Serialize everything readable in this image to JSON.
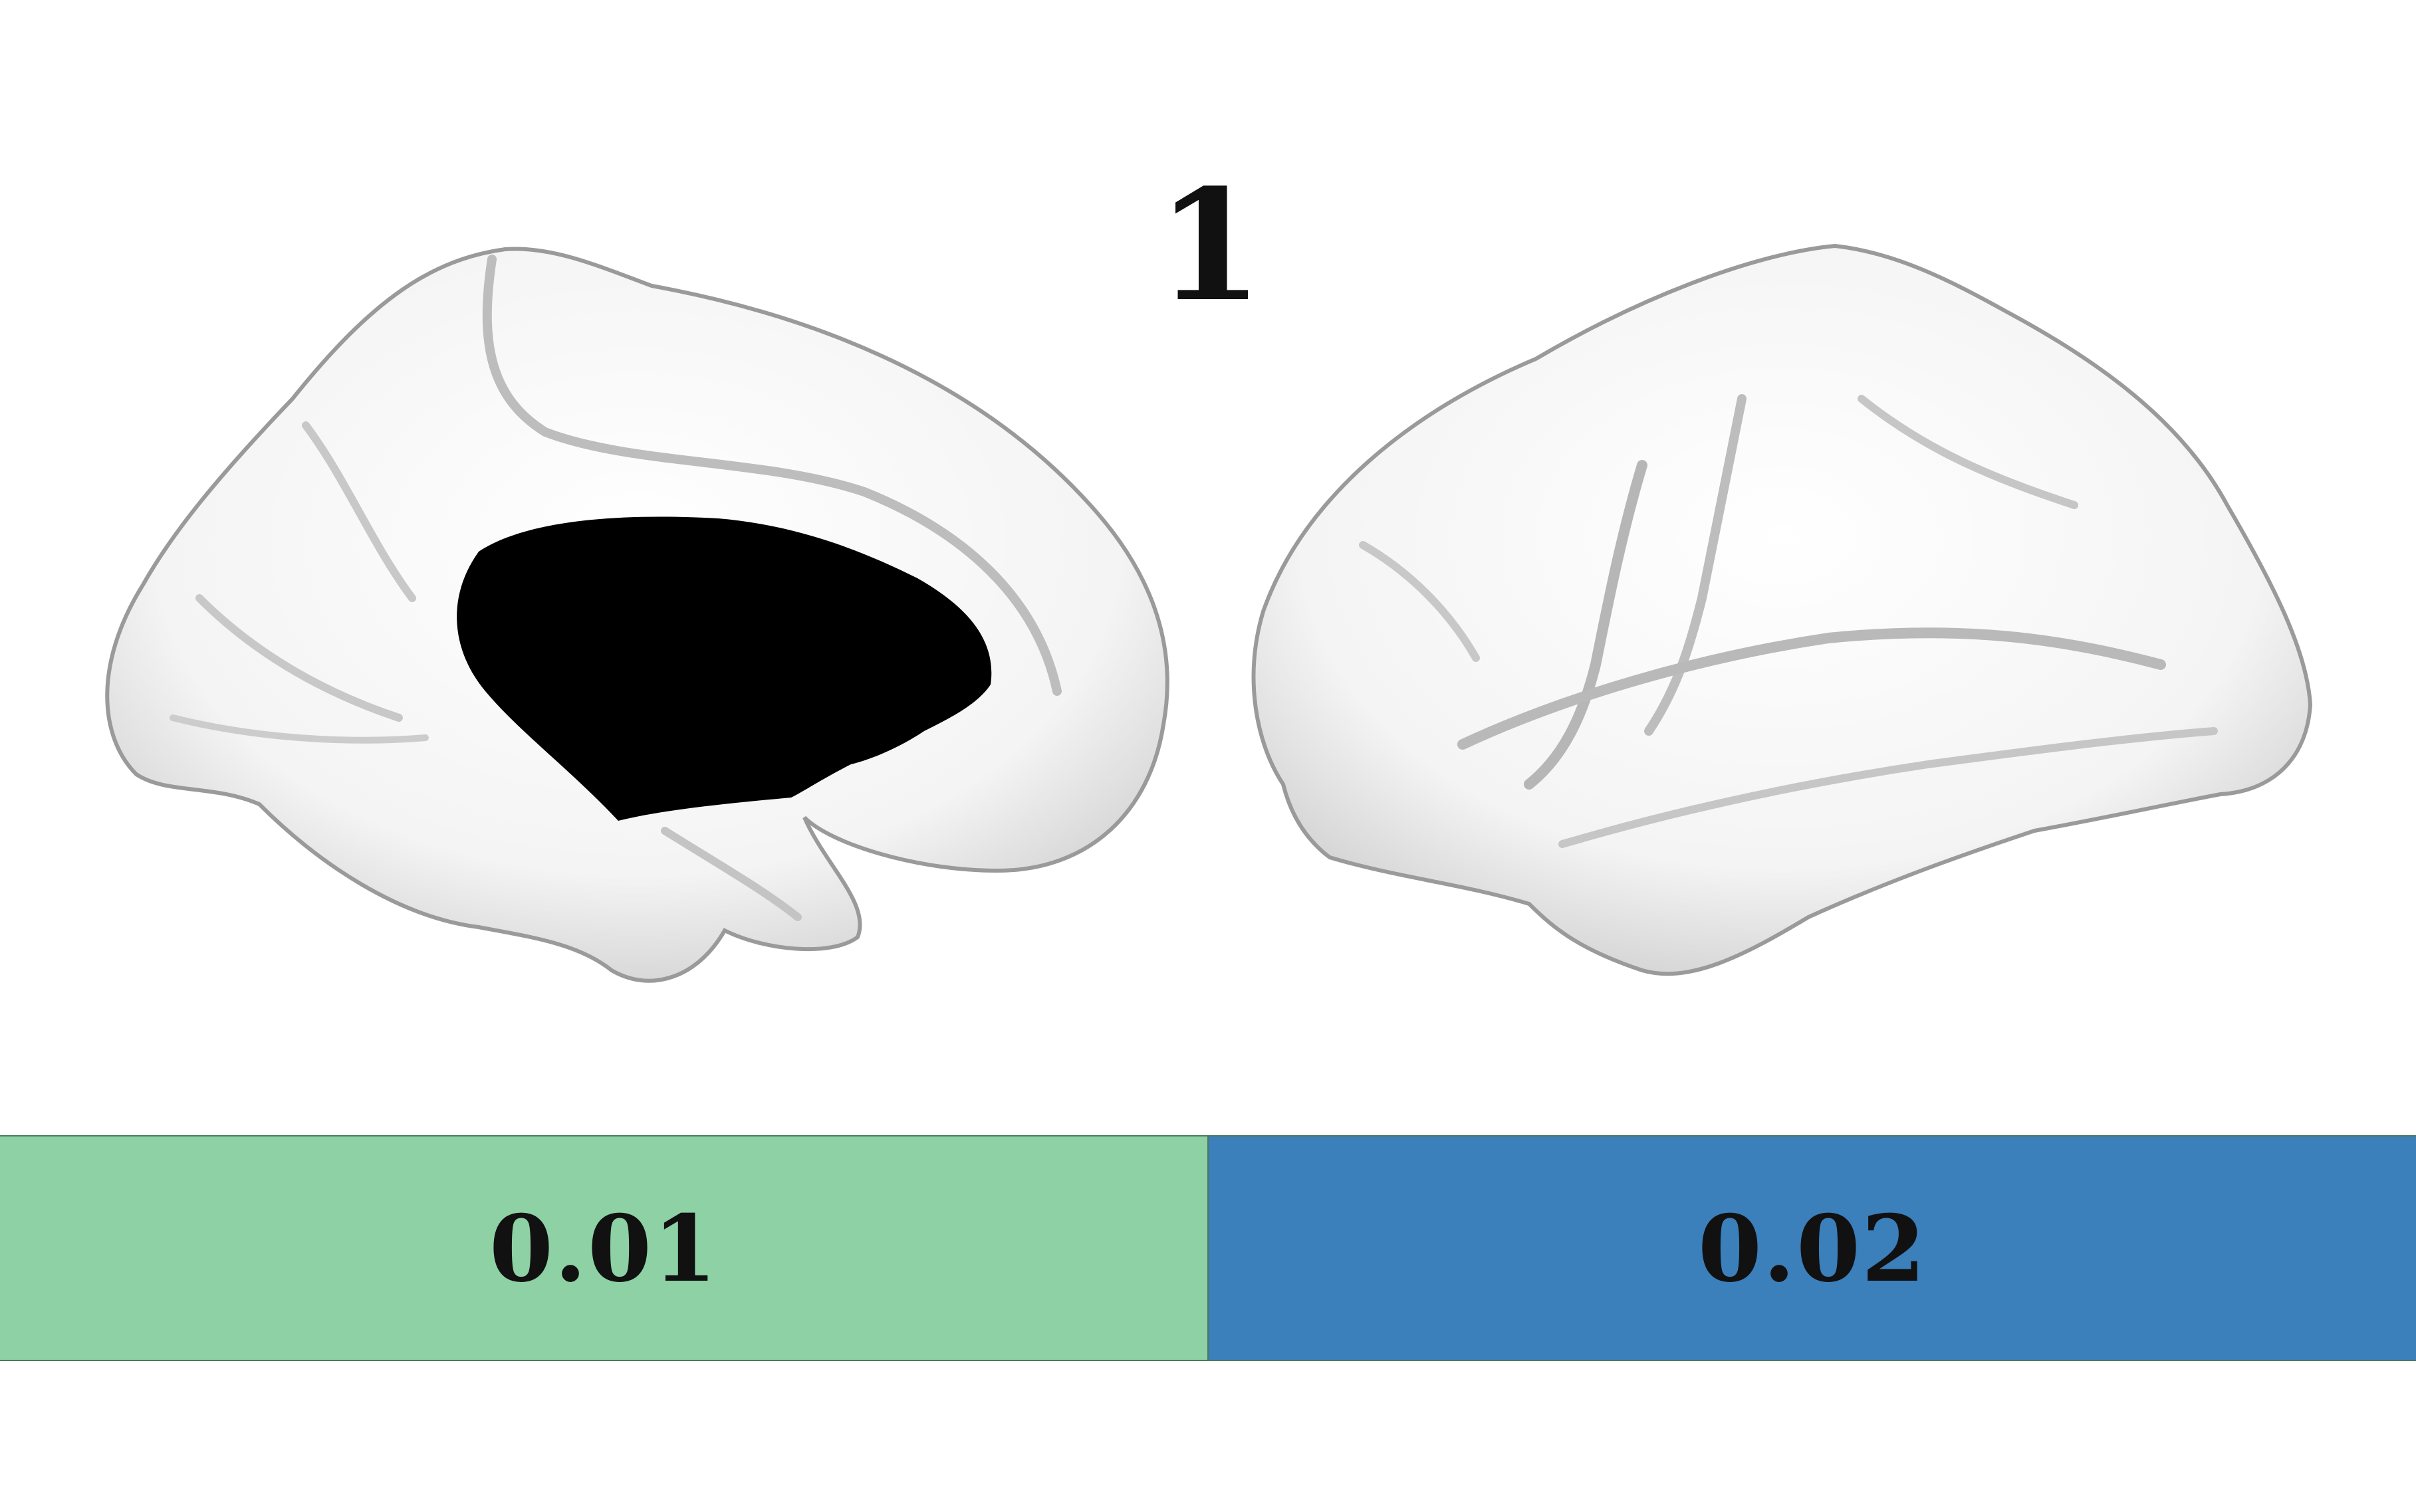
{
  "figure": {
    "number_label": "1"
  },
  "views": [
    {
      "name": "medial-view",
      "icon": "brain-medial-icon",
      "medial_wall_color": "#000000"
    },
    {
      "name": "lateral-view",
      "icon": "brain-lateral-icon"
    }
  ],
  "legend": [
    {
      "label": "0.01",
      "color": "#8dd1a5"
    },
    {
      "label": "0.02",
      "color": "#3b7fbb"
    }
  ]
}
